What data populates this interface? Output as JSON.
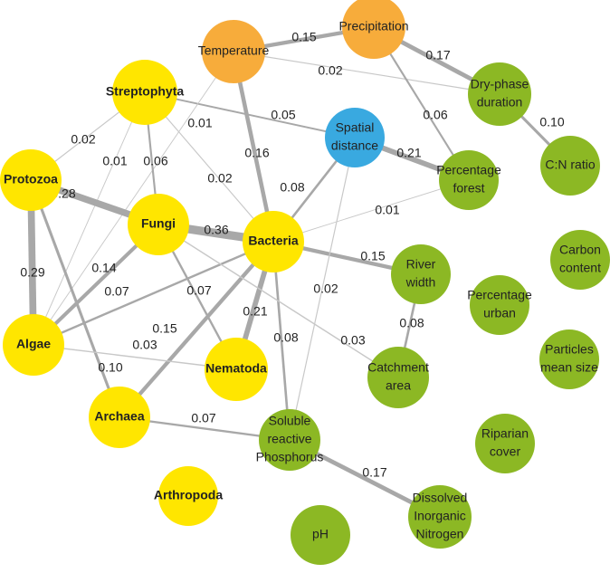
{
  "nodes": [
    {
      "label": [
        "Temperature"
      ],
      "color": "#f7ac3b"
    },
    {
      "label": [
        "Precipitation"
      ],
      "color": "#f7ac3b"
    },
    {
      "label": [
        "Streptophyta"
      ],
      "color": "#ffe600"
    },
    {
      "label": [
        "Spatial",
        "distance"
      ],
      "color": "#39a9e0"
    },
    {
      "label": [
        "Dry-phase",
        "duration"
      ],
      "color": "#8cb824"
    },
    {
      "label": [
        "C:N ratio"
      ],
      "color": "#8cb824"
    },
    {
      "label": [
        "Percentage",
        "forest"
      ],
      "color": "#8cb824"
    },
    {
      "label": [
        "Protozoa"
      ],
      "color": "#ffe600"
    },
    {
      "label": [
        "Fungi"
      ],
      "color": "#ffe600"
    },
    {
      "label": [
        "Bacteria"
      ],
      "color": "#ffe600"
    },
    {
      "label": [
        "River",
        "width"
      ],
      "color": "#8cb824"
    },
    {
      "label": [
        "Carbon",
        "content"
      ],
      "color": "#8cb824"
    },
    {
      "label": [
        "Percentage",
        "urban"
      ],
      "color": "#8cb824"
    },
    {
      "label": [
        "Particles",
        "mean size"
      ],
      "color": "#8cb824"
    },
    {
      "label": [
        "Algae"
      ],
      "color": "#ffe600"
    },
    {
      "label": [
        "Nematoda"
      ],
      "color": "#ffe600"
    },
    {
      "label": [
        "Catchment",
        "area"
      ],
      "color": "#8cb824"
    },
    {
      "label": [
        "Archaea"
      ],
      "color": "#ffe600"
    },
    {
      "label": [
        "Soluble",
        "reactive",
        "Phosphorus"
      ],
      "color": "#8cb824"
    },
    {
      "label": [
        "Riparian",
        "cover"
      ],
      "color": "#8cb824"
    },
    {
      "label": [
        "Arthropoda"
      ],
      "color": "#ffe600"
    },
    {
      "label": [
        "Dissolved",
        "Inorganic",
        "Nitrogen"
      ],
      "color": "#8cb824"
    },
    {
      "label": [
        "pH"
      ],
      "color": "#8cb824"
    }
  ],
  "edges": [
    {
      "source": 0,
      "target": 1,
      "weight": 0.15
    },
    {
      "source": 1,
      "target": 4,
      "weight": 0.17
    },
    {
      "source": 0,
      "target": 4,
      "weight": 0.02
    },
    {
      "source": 4,
      "target": 5,
      "weight": {
        "value": 0.1,
        "label": "0.10"
      }
    },
    {
      "source": 1,
      "target": 6,
      "weight": 0.06
    },
    {
      "source": 2,
      "target": 3,
      "weight": 0.05
    },
    {
      "source": 3,
      "target": 6,
      "weight": 0.21
    },
    {
      "source": 0,
      "target": 9,
      "weight": 0.16
    },
    {
      "source": 0,
      "target": 14,
      "weight": 0.01
    },
    {
      "source": 2,
      "target": 7,
      "weight": 0.02
    },
    {
      "source": 2,
      "target": 14,
      "weight": 0.01
    },
    {
      "source": 2,
      "target": 8,
      "weight": 0.06
    },
    {
      "source": 2,
      "target": 9,
      "weight": 0.02
    },
    {
      "source": 7,
      "target": 8,
      "weight": 0.28
    },
    {
      "source": 7,
      "target": 14,
      "weight": 0.29
    },
    {
      "source": 7,
      "target": 17,
      "weight": {
        "value": 0.1,
        "label": "0.10"
      }
    },
    {
      "source": 8,
      "target": 9,
      "weight": 0.36
    },
    {
      "source": 8,
      "target": 14,
      "weight": 0.14
    },
    {
      "source": 8,
      "target": 15,
      "weight": 0.07
    },
    {
      "source": 9,
      "target": 3,
      "weight": 0.08
    },
    {
      "source": 9,
      "target": 6,
      "weight": 0.01
    },
    {
      "source": 9,
      "target": 10,
      "weight": 0.15
    },
    {
      "source": 9,
      "target": 14,
      "weight": 0.07
    },
    {
      "source": 9,
      "target": 15,
      "weight": 0.21
    },
    {
      "source": 9,
      "target": 17,
      "weight": 0.15
    },
    {
      "source": 9,
      "target": 18,
      "weight": 0.08
    },
    {
      "source": 3,
      "target": 18,
      "weight": 0.02
    },
    {
      "source": 8,
      "target": 16,
      "weight": 0.03
    },
    {
      "source": 14,
      "target": 15,
      "weight": 0.03
    },
    {
      "source": 10,
      "target": 16,
      "weight": 0.08
    },
    {
      "source": 17,
      "target": 18,
      "weight": 0.07
    },
    {
      "source": 18,
      "target": 21,
      "weight": 0.17
    }
  ]
}
